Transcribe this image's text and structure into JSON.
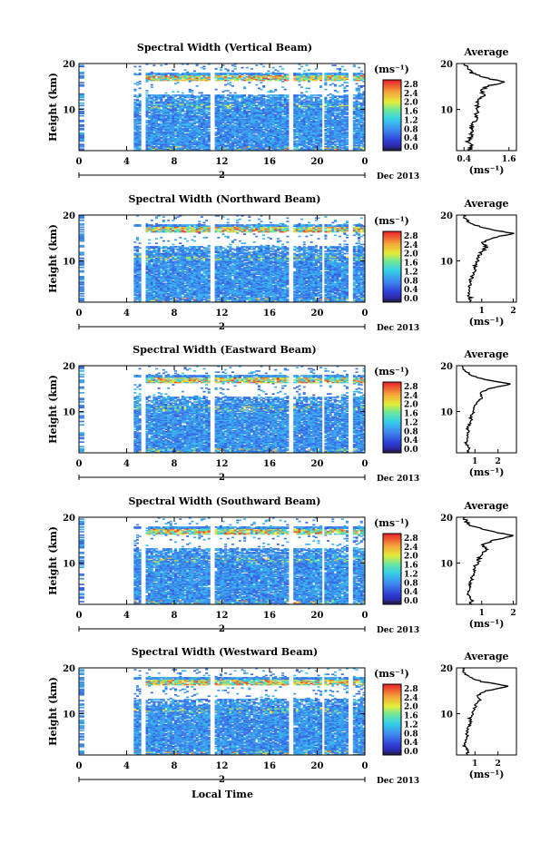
{
  "figure": {
    "xlabel": "Local Time",
    "colorbar_unit": "(ms⁻¹)",
    "date_label": "Dec 2013",
    "day_label": "2",
    "avg_title": "Average",
    "avg_unit": "(ms⁻¹)",
    "ylabel": "Height (km)"
  },
  "chart_data": [
    {
      "type": "heatmap",
      "title": "Spectral Width (Vertical Beam)",
      "ylabel": "Height (km)",
      "x_ticks": [
        "0",
        "4",
        "8",
        "12",
        "16",
        "20",
        "0"
      ],
      "y_ticks": [
        "10",
        "20"
      ],
      "xlim": [
        0,
        24
      ],
      "ylim": [
        1,
        20
      ],
      "colorbar_ticks": [
        "2.8",
        "2.4",
        "2.0",
        "1.6",
        "1.2",
        "0.8",
        "0.4",
        "0.0"
      ],
      "colorbar_range": [
        0,
        3.0
      ],
      "data_gaps_hours": [
        [
          0,
          4.6
        ],
        [
          5.2,
          5.6
        ],
        [
          10.8,
          11.2
        ],
        [
          17.5,
          17.8
        ],
        [
          20.2,
          20.5
        ],
        [
          22.4,
          22.9
        ],
        [
          23.8,
          24
        ]
      ],
      "average_profile": {
        "title": "Average",
        "x_ticks": [
          "0.4",
          "1.6"
        ],
        "xlim": [
          0.2,
          1.8
        ],
        "y_ticks": [
          "10",
          "20"
        ],
        "height_km": [
          1,
          2,
          3,
          4,
          5,
          6,
          7,
          8,
          9,
          10,
          11,
          12,
          13,
          14,
          15,
          16,
          17,
          18,
          19,
          20
        ],
        "values": [
          0.55,
          0.6,
          0.5,
          0.58,
          0.62,
          0.6,
          0.65,
          0.72,
          0.7,
          0.78,
          0.75,
          0.8,
          0.95,
          0.85,
          1.0,
          1.5,
          0.9,
          0.6,
          0.5,
          0.45
        ]
      }
    },
    {
      "type": "heatmap",
      "title": "Spectral Width (Northward Beam)",
      "ylabel": "Height (km)",
      "x_ticks": [
        "0",
        "4",
        "8",
        "12",
        "16",
        "20",
        "0"
      ],
      "y_ticks": [
        "10",
        "20"
      ],
      "xlim": [
        0,
        24
      ],
      "ylim": [
        1,
        20
      ],
      "colorbar_ticks": [
        "2.8",
        "2.4",
        "2.0",
        "1.6",
        "1.2",
        "0.8",
        "0.4",
        "0.0"
      ],
      "colorbar_range": [
        0,
        3.0
      ],
      "data_gaps_hours": [
        [
          0,
          4.6
        ],
        [
          5.2,
          5.6
        ],
        [
          10.8,
          11.2
        ],
        [
          17.5,
          17.8
        ],
        [
          20.2,
          20.5
        ],
        [
          22.4,
          22.9
        ],
        [
          23.8,
          24
        ]
      ],
      "average_profile": {
        "title": "Average",
        "x_ticks": [
          "1",
          "2"
        ],
        "xlim": [
          0.2,
          2.1
        ],
        "y_ticks": [
          "10",
          "20"
        ],
        "height_km": [
          1,
          2,
          3,
          4,
          5,
          6,
          7,
          8,
          9,
          10,
          11,
          12,
          13,
          14,
          15,
          16,
          17,
          18,
          19,
          20
        ],
        "values": [
          0.6,
          0.65,
          0.55,
          0.6,
          0.62,
          0.65,
          0.7,
          0.8,
          0.78,
          0.85,
          0.9,
          1.0,
          1.15,
          1.05,
          1.3,
          2.0,
          1.2,
          0.7,
          0.5,
          0.45
        ]
      }
    },
    {
      "type": "heatmap",
      "title": "Spectral Width (Eastward Beam)",
      "ylabel": "Height (km)",
      "x_ticks": [
        "0",
        "4",
        "8",
        "12",
        "16",
        "20",
        "0"
      ],
      "y_ticks": [
        "10",
        "20"
      ],
      "xlim": [
        0,
        24
      ],
      "ylim": [
        1,
        20
      ],
      "colorbar_ticks": [
        "2.8",
        "2.4",
        "2.0",
        "1.6",
        "1.2",
        "0.8",
        "0.4",
        "0.0"
      ],
      "colorbar_range": [
        0,
        3.0
      ],
      "data_gaps_hours": [
        [
          0,
          4.6
        ],
        [
          5.2,
          5.6
        ],
        [
          10.8,
          11.2
        ],
        [
          17.5,
          17.8
        ],
        [
          20.2,
          20.5
        ],
        [
          22.4,
          22.9
        ],
        [
          23.8,
          24
        ]
      ],
      "average_profile": {
        "title": "Average",
        "x_ticks": [
          "1",
          "2"
        ],
        "xlim": [
          0.2,
          2.8
        ],
        "y_ticks": [
          "10",
          "20"
        ],
        "height_km": [
          1,
          2,
          3,
          4,
          5,
          6,
          7,
          8,
          9,
          10,
          11,
          12,
          13,
          14,
          15,
          16,
          17,
          18,
          19,
          20
        ],
        "values": [
          0.7,
          0.75,
          0.6,
          0.65,
          0.7,
          0.68,
          0.75,
          0.85,
          0.8,
          0.95,
          1.0,
          1.1,
          1.3,
          1.2,
          1.6,
          2.6,
          1.4,
          0.8,
          0.55,
          0.5
        ]
      }
    },
    {
      "type": "heatmap",
      "title": "Spectral Width (Southward Beam)",
      "ylabel": "Height (km)",
      "x_ticks": [
        "0",
        "4",
        "8",
        "12",
        "16",
        "20",
        "0"
      ],
      "y_ticks": [
        "10",
        "20"
      ],
      "xlim": [
        0,
        24
      ],
      "ylim": [
        1,
        20
      ],
      "colorbar_ticks": [
        "2.8",
        "2.4",
        "2.0",
        "1.6",
        "1.2",
        "0.8",
        "0.4",
        "0.0"
      ],
      "colorbar_range": [
        0,
        3.0
      ],
      "data_gaps_hours": [
        [
          0,
          4.6
        ],
        [
          5.2,
          5.6
        ],
        [
          10.8,
          11.2
        ],
        [
          17.5,
          17.8
        ],
        [
          20.2,
          20.5
        ],
        [
          22.4,
          22.9
        ],
        [
          23.8,
          24
        ]
      ],
      "average_profile": {
        "title": "Average",
        "x_ticks": [
          "1",
          "2"
        ],
        "xlim": [
          0.2,
          2.1
        ],
        "y_ticks": [
          "10",
          "20"
        ],
        "height_km": [
          1,
          2,
          3,
          4,
          5,
          6,
          7,
          8,
          9,
          10,
          11,
          12,
          13,
          14,
          15,
          16,
          17,
          18,
          19,
          20
        ],
        "values": [
          0.65,
          0.7,
          0.55,
          0.62,
          0.66,
          0.64,
          0.7,
          0.78,
          0.76,
          0.86,
          0.92,
          1.0,
          1.15,
          1.05,
          1.4,
          2.0,
          1.25,
          0.7,
          0.5,
          0.45
        ]
      }
    },
    {
      "type": "heatmap",
      "title": "Spectral Width (Westward Beam)",
      "ylabel": "Height (km)",
      "x_ticks": [
        "0",
        "4",
        "8",
        "12",
        "16",
        "20",
        "0"
      ],
      "y_ticks": [
        "10",
        "20"
      ],
      "xlim": [
        0,
        24
      ],
      "ylim": [
        1,
        20
      ],
      "colorbar_ticks": [
        "2.8",
        "2.4",
        "2.0",
        "1.6",
        "1.2",
        "0.8",
        "0.4",
        "0.0"
      ],
      "colorbar_range": [
        0,
        3.0
      ],
      "data_gaps_hours": [
        [
          0,
          4.6
        ],
        [
          5.2,
          5.6
        ],
        [
          10.8,
          11.2
        ],
        [
          17.5,
          17.8
        ],
        [
          20.2,
          20.5
        ],
        [
          22.4,
          22.9
        ],
        [
          23.8,
          24
        ]
      ],
      "average_profile": {
        "title": "Average",
        "x_ticks": [
          "1",
          "2"
        ],
        "xlim": [
          0.2,
          2.8
        ],
        "y_ticks": [
          "10",
          "20"
        ],
        "height_km": [
          1,
          2,
          3,
          4,
          5,
          6,
          7,
          8,
          9,
          10,
          11,
          12,
          13,
          14,
          15,
          16,
          17,
          18,
          19,
          20
        ],
        "values": [
          0.65,
          0.7,
          0.55,
          0.6,
          0.65,
          0.64,
          0.72,
          0.8,
          0.78,
          0.9,
          0.95,
          1.05,
          1.2,
          1.1,
          1.5,
          2.5,
          1.3,
          0.75,
          0.5,
          0.48
        ]
      }
    }
  ]
}
